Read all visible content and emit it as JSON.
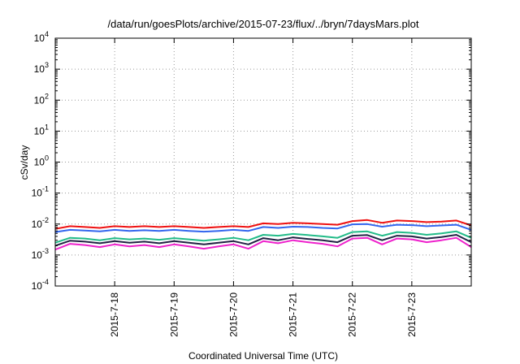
{
  "chart_data": {
    "type": "line",
    "title": "/data/run/goesPlots/archive/2015-07-23/flux/../bryn/7daysMars.plot",
    "xlabel": "Coordinated Universal Time (UTC)",
    "ylabel": "cSv/day",
    "yscale": "log",
    "ylim": [
      0.0001,
      10000
    ],
    "xlim": [
      "2015-07-17 00:00",
      "2015-07-24 00:00"
    ],
    "grid": true,
    "y_ticks": [
      {
        "value": 0.0001,
        "base": "10",
        "exp": "-4"
      },
      {
        "value": 0.001,
        "base": "10",
        "exp": "-3"
      },
      {
        "value": 0.01,
        "base": "10",
        "exp": "-2"
      },
      {
        "value": 0.1,
        "base": "10",
        "exp": "-1"
      },
      {
        "value": 1,
        "base": "10",
        "exp": "0"
      },
      {
        "value": 10,
        "base": "10",
        "exp": "1"
      },
      {
        "value": 100,
        "base": "10",
        "exp": "2"
      },
      {
        "value": 1000,
        "base": "10",
        "exp": "3"
      },
      {
        "value": 10000,
        "base": "10",
        "exp": "4"
      }
    ],
    "x_ticks": [
      "2015-7-18",
      "2015-7-19",
      "2015-7-20",
      "2015-7-21",
      "2015-7-22",
      "2015-7-23"
    ],
    "x": [
      "2015-07-17 00:00",
      "2015-07-17 06:00",
      "2015-07-17 12:00",
      "2015-07-17 18:00",
      "2015-07-18 00:00",
      "2015-07-18 06:00",
      "2015-07-18 12:00",
      "2015-07-18 18:00",
      "2015-07-19 00:00",
      "2015-07-19 06:00",
      "2015-07-19 12:00",
      "2015-07-19 18:00",
      "2015-07-20 00:00",
      "2015-07-20 06:00",
      "2015-07-20 12:00",
      "2015-07-20 18:00",
      "2015-07-21 00:00",
      "2015-07-21 06:00",
      "2015-07-21 12:00",
      "2015-07-21 18:00",
      "2015-07-22 00:00",
      "2015-07-22 06:00",
      "2015-07-22 12:00",
      "2015-07-22 18:00",
      "2015-07-23 00:00",
      "2015-07-23 06:00",
      "2015-07-23 12:00",
      "2015-07-23 18:00",
      "2015-07-24 00:00"
    ],
    "series": [
      {
        "color": "#ee1111",
        "values": [
          0.007,
          0.0085,
          0.008,
          0.0075,
          0.0085,
          0.008,
          0.0085,
          0.008,
          0.0085,
          0.008,
          0.0075,
          0.008,
          0.0085,
          0.008,
          0.0105,
          0.01,
          0.011,
          0.0105,
          0.01,
          0.0095,
          0.0125,
          0.0135,
          0.011,
          0.013,
          0.0125,
          0.0115,
          0.012,
          0.013,
          0.009
        ]
      },
      {
        "color": "#3366ee",
        "values": [
          0.0055,
          0.0065,
          0.0062,
          0.0058,
          0.0065,
          0.006,
          0.0063,
          0.006,
          0.0065,
          0.006,
          0.0057,
          0.006,
          0.0065,
          0.006,
          0.008,
          0.0075,
          0.0082,
          0.008,
          0.0075,
          0.0072,
          0.0098,
          0.01,
          0.0082,
          0.0095,
          0.0092,
          0.0085,
          0.009,
          0.0095,
          0.0065
        ]
      },
      {
        "color": "#22bb88",
        "values": [
          0.0025,
          0.0036,
          0.0034,
          0.003,
          0.0035,
          0.0032,
          0.0034,
          0.0031,
          0.0035,
          0.0032,
          0.0029,
          0.0032,
          0.0036,
          0.003,
          0.0045,
          0.0042,
          0.0048,
          0.0044,
          0.004,
          0.0036,
          0.0055,
          0.0058,
          0.0042,
          0.0055,
          0.0052,
          0.0045,
          0.005,
          0.0058,
          0.0036
        ]
      },
      {
        "color": "#222244",
        "values": [
          0.002,
          0.0029,
          0.0027,
          0.0024,
          0.0028,
          0.0025,
          0.0027,
          0.0024,
          0.0028,
          0.0025,
          0.0022,
          0.0025,
          0.0028,
          0.0022,
          0.0035,
          0.003,
          0.0037,
          0.0033,
          0.003,
          0.0026,
          0.0042,
          0.0044,
          0.003,
          0.0042,
          0.004,
          0.0034,
          0.0038,
          0.0045,
          0.0026
        ]
      },
      {
        "color": "#ee22cc",
        "values": [
          0.0015,
          0.0023,
          0.0021,
          0.0018,
          0.0022,
          0.0019,
          0.0021,
          0.0018,
          0.0022,
          0.0019,
          0.0016,
          0.0019,
          0.0022,
          0.0016,
          0.0028,
          0.0024,
          0.003,
          0.0026,
          0.0023,
          0.0019,
          0.0034,
          0.0036,
          0.0022,
          0.0034,
          0.0032,
          0.0026,
          0.003,
          0.0036,
          0.0018
        ]
      }
    ]
  }
}
